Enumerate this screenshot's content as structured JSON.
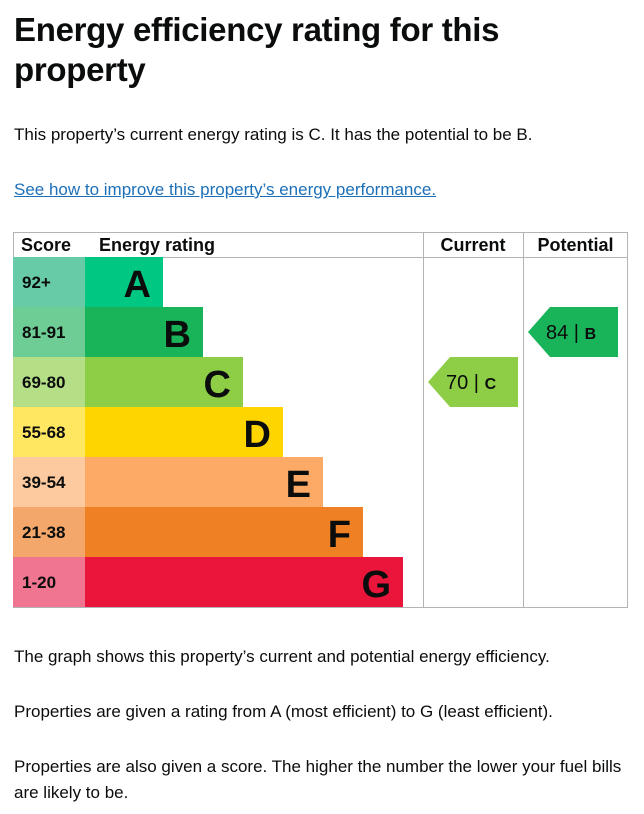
{
  "page": {
    "title": "Energy efficiency rating for this property",
    "intro": "This property’s current energy rating is C. It has the potential to be B.",
    "improve_link": "See how to improve this property’s energy performance.",
    "descriptions": [
      "The graph shows this property’s current and potential energy efficiency.",
      "Properties are given a rating from A (most efficient) to G (least efficient).",
      "Properties are also given a score. The higher the number the lower your fuel bills are likely to be."
    ]
  },
  "chart_data": {
    "type": "bar",
    "headers": {
      "score": "Score",
      "rating": "Energy rating",
      "current": "Current",
      "potential": "Potential"
    },
    "bands": [
      {
        "letter": "A",
        "range": "92+",
        "color": "#00c781",
        "score_color": "#67cba7"
      },
      {
        "letter": "B",
        "range": "81-91",
        "color": "#19b459",
        "score_color": "#6ecd95"
      },
      {
        "letter": "C",
        "range": "69-80",
        "color": "#8dce46",
        "score_color": "#b4df87"
      },
      {
        "letter": "D",
        "range": "55-68",
        "color": "#ffd500",
        "score_color": "#ffe762"
      },
      {
        "letter": "E",
        "range": "39-54",
        "color": "#fcaa65",
        "score_color": "#fdc99e"
      },
      {
        "letter": "F",
        "range": "21-38",
        "color": "#ef8023",
        "score_color": "#f4a76b"
      },
      {
        "letter": "G",
        "range": "1-20",
        "color": "#e9153b",
        "score_color": "#f07590"
      }
    ],
    "current": {
      "score": "70",
      "letter": "C",
      "band": "C",
      "color": "#8dce46",
      "text": "70 | ",
      "text_color": "#0b0c0c"
    },
    "potential": {
      "score": "84",
      "letter": "B",
      "band": "B",
      "color": "#19b459",
      "text": "84 | ",
      "text_color": "#0b0c0c"
    }
  }
}
